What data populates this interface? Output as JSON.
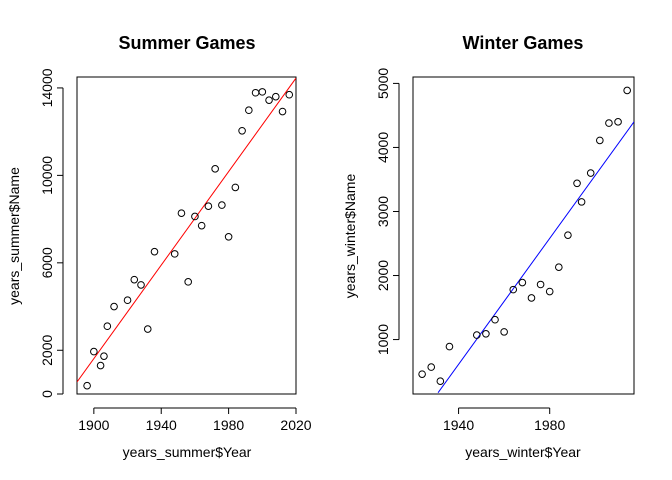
{
  "colors": {
    "summer_fit": "#ff0000",
    "winter_fit": "#0000ff",
    "points": "#000000",
    "axes": "#000000"
  },
  "chart_data": [
    {
      "type": "scatter",
      "title": "Summer Games",
      "xlabel": "years_summer$Year",
      "ylabel": "years_summer$Name",
      "xlim": [
        1890,
        2020
      ],
      "ylim": [
        0,
        14500
      ],
      "xticks": [
        1900,
        1940,
        1980,
        2020
      ],
      "xtick_labels": [
        "1900",
        "1940",
        "1980",
        "2020"
      ],
      "yticks": [
        0,
        2000,
        6000,
        10000,
        14000
      ],
      "ytick_labels": [
        "0",
        "2000",
        "6000",
        "10000",
        "14000"
      ],
      "grid": false,
      "series": [
        {
          "x": [
            1896,
            1900,
            1904,
            1906,
            1908,
            1912,
            1920,
            1924,
            1928,
            1932,
            1936,
            1948,
            1952,
            1956,
            1960,
            1964,
            1968,
            1972,
            1976,
            1980,
            1984,
            1988,
            1992,
            1996,
            2000,
            2004,
            2008,
            2012,
            2016
          ],
          "y": [
            380,
            1940,
            1300,
            1730,
            3100,
            4000,
            4290,
            5230,
            4990,
            2970,
            6510,
            6410,
            8270,
            5130,
            8120,
            7700,
            8590,
            10300,
            8640,
            7190,
            9450,
            12040,
            12980,
            13780,
            13820,
            13440,
            13600,
            12920,
            13690
          ],
          "fit": {
            "x": [
              1890,
              2020
            ],
            "y": [
              550,
              14450
            ]
          }
        }
      ]
    },
    {
      "type": "scatter",
      "title": "Winter Games",
      "xlabel": "years_winter$Year",
      "ylabel": "years_winter$Name",
      "xlim": [
        1920,
        2017
      ],
      "ylim": [
        150,
        5100
      ],
      "xticks": [
        1940,
        1980
      ],
      "xtick_labels": [
        "1940",
        "1980"
      ],
      "yticks": [
        1000,
        2000,
        3000,
        4000,
        5000
      ],
      "ytick_labels": [
        "1000",
        "2000",
        "3000",
        "4000",
        "5000"
      ],
      "grid": false,
      "series": [
        {
          "x": [
            1924,
            1928,
            1932,
            1936,
            1948,
            1952,
            1956,
            1960,
            1964,
            1968,
            1972,
            1976,
            1980,
            1984,
            1988,
            1992,
            1994,
            1998,
            2002,
            2006,
            2010,
            2014
          ],
          "y": [
            460,
            570,
            350,
            890,
            1070,
            1090,
            1310,
            1120,
            1780,
            1890,
            1650,
            1860,
            1750,
            2130,
            2630,
            3440,
            3150,
            3600,
            4110,
            4380,
            4400,
            4890
          ],
          "fit": {
            "x": [
              1931,
              2017
            ],
            "y": [
              170,
              4400
            ]
          }
        }
      ]
    }
  ]
}
